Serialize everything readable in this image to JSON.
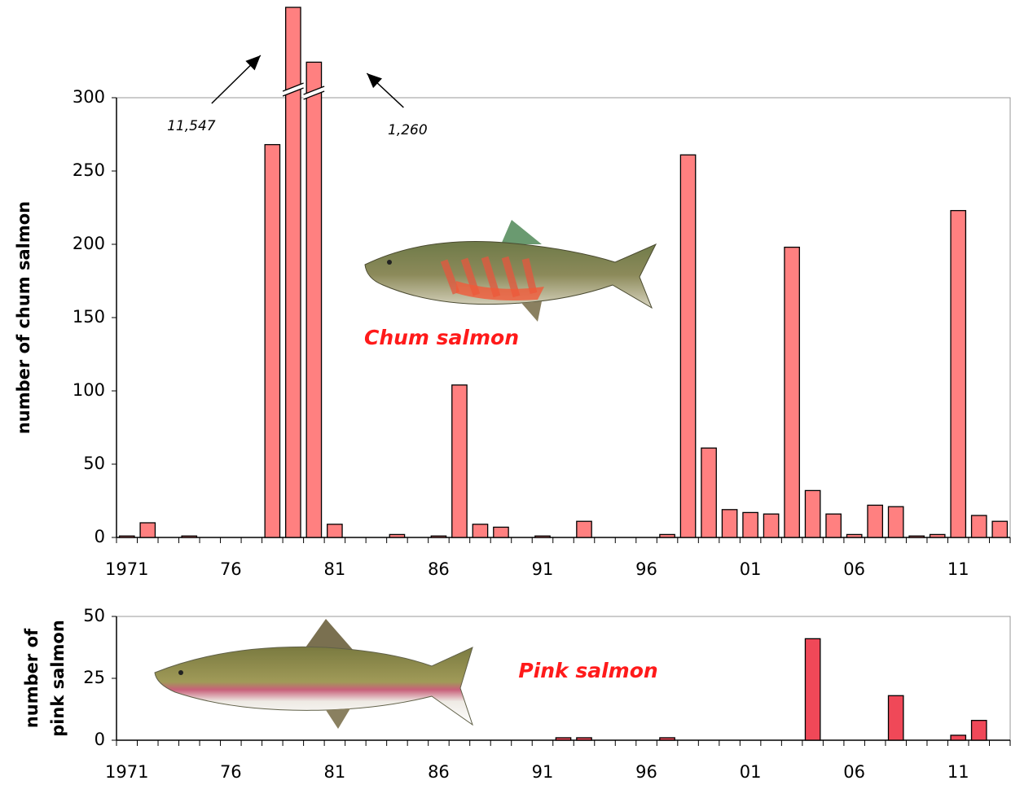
{
  "chart_data": [
    {
      "type": "bar",
      "ylabel": [
        "number of chum salmon"
      ],
      "annotation": "Chum salmon",
      "categories": [
        "1971",
        null,
        null,
        null,
        null,
        "76",
        null,
        null,
        null,
        null,
        "81",
        null,
        null,
        null,
        null,
        "86",
        null,
        null,
        null,
        null,
        "91",
        null,
        null,
        null,
        null,
        "96",
        null,
        null,
        null,
        null,
        "01",
        null,
        null,
        null,
        null,
        "06",
        null,
        null,
        null,
        null,
        "11",
        null,
        null
      ],
      "values": [
        1,
        10,
        0,
        1,
        0,
        0,
        0,
        268,
        11547,
        1260,
        9,
        0,
        0,
        2,
        0,
        1,
        104,
        9,
        7,
        0,
        1,
        0,
        11,
        0,
        0,
        0,
        2,
        261,
        61,
        19,
        17,
        16,
        198,
        32,
        16,
        2,
        22,
        21,
        1,
        2,
        223,
        15,
        11
      ],
      "value_labels": [
        null,
        null,
        null,
        null,
        null,
        null,
        null,
        null,
        "11,547",
        "1,260",
        null,
        null,
        null,
        null,
        null,
        null,
        null,
        null,
        null,
        null,
        null,
        null,
        null,
        null,
        null,
        null,
        null,
        null,
        null,
        null,
        null,
        null,
        null,
        null,
        null,
        null,
        null,
        null,
        null,
        null,
        null,
        null,
        null
      ],
      "color": "#ff8080",
      "ylim": [
        0,
        300
      ],
      "yticks": [
        0,
        50,
        100,
        150,
        200,
        250,
        300
      ],
      "grid": false
    },
    {
      "type": "bar",
      "ylabel": [
        "number of",
        "pink salmon"
      ],
      "annotation": "Pink salmon",
      "categories": [
        "1971",
        null,
        null,
        null,
        null,
        "76",
        null,
        null,
        null,
        null,
        "81",
        null,
        null,
        null,
        null,
        "86",
        null,
        null,
        null,
        null,
        "91",
        null,
        null,
        null,
        null,
        "96",
        null,
        null,
        null,
        null,
        "01",
        null,
        null,
        null,
        null,
        "06",
        null,
        null,
        null,
        null,
        "11",
        null,
        null
      ],
      "values": [
        0,
        0,
        0,
        0,
        0,
        0,
        0,
        0,
        0,
        0,
        0,
        0,
        0,
        0,
        0,
        0,
        0,
        0,
        0,
        0,
        0,
        1,
        1,
        0,
        0,
        0,
        1,
        0,
        0,
        0,
        0,
        0,
        0,
        41,
        0,
        0,
        0,
        18,
        0,
        0,
        2,
        8,
        0
      ],
      "color": "#f04858",
      "ylim": [
        0,
        50
      ],
      "yticks": [
        0,
        25,
        50
      ],
      "grid": false
    }
  ]
}
